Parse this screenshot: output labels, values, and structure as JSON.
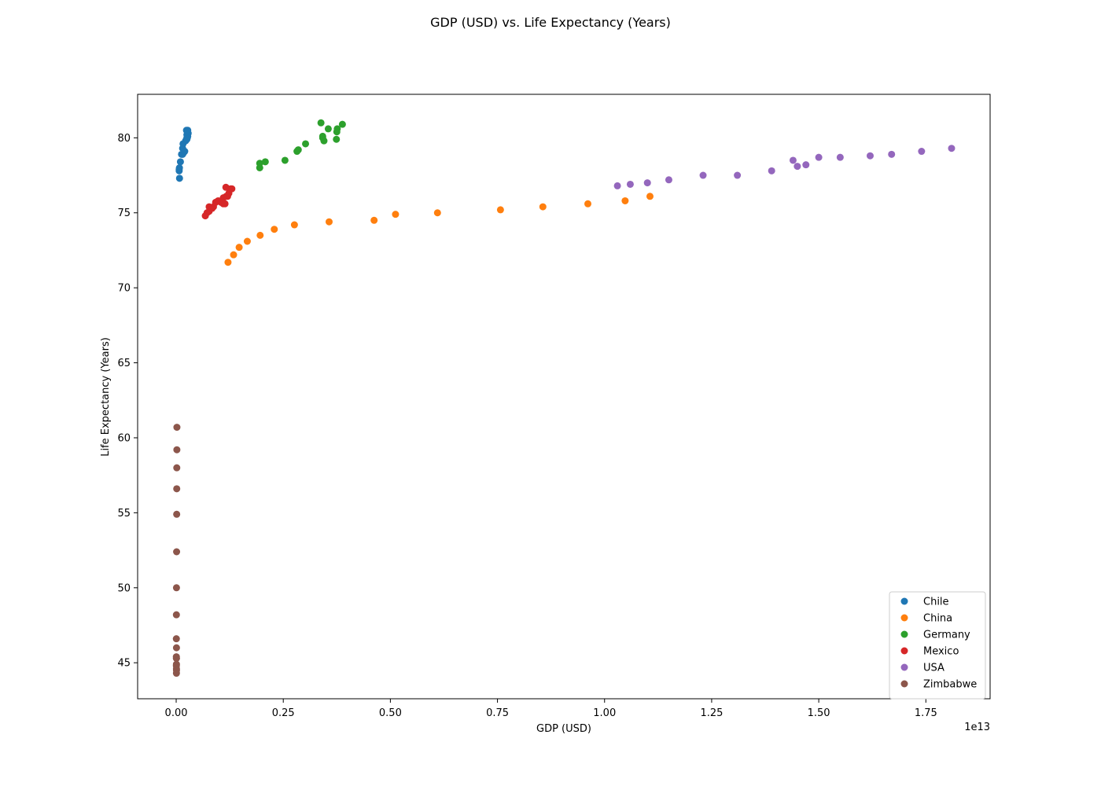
{
  "chart_data": {
    "type": "scatter",
    "title": "GDP (USD) vs. Life Expectancy (Years)",
    "xlabel": "GDP (USD)",
    "ylabel": "Life Expectancy (Years)",
    "x_offset_label": "1e13",
    "xlim": [
      -900000000000.0,
      19000000000000.0
    ],
    "ylim": [
      42.6,
      82.9
    ],
    "x_ticks": [
      0,
      2500000000000.0,
      5000000000000.0,
      7500000000000.0,
      10000000000000.0,
      12500000000000.0,
      15000000000000.0,
      17500000000000.0
    ],
    "x_tick_labels": [
      "0.00",
      "0.25",
      "0.50",
      "0.75",
      "1.00",
      "1.25",
      "1.50",
      "1.75"
    ],
    "y_ticks": [
      45,
      50,
      55,
      60,
      65,
      70,
      75,
      80
    ],
    "y_tick_labels": [
      "45",
      "50",
      "55",
      "60",
      "65",
      "70",
      "75",
      "80"
    ],
    "grid": false,
    "legend_position": "lower-right",
    "series": [
      {
        "name": "Chile",
        "color": "#1f77b4",
        "x": [
          78000000000.0,
          70000000000.0,
          70000000000.0,
          76000000000.0,
          99000000000.0,
          125000000000.0,
          150000000000.0,
          172000000000.0,
          160000000000.0,
          150000000000.0,
          200000000000.0,
          220000000000.0,
          240000000000.0,
          260000000000.0,
          270000000000.0,
          280000000000.0,
          270000000000.0,
          260000000000.0,
          250000000000.0,
          250000000000.0,
          240000000000.0,
          250000000000.0
        ],
        "y": [
          77.3,
          77.8,
          77.9,
          78.0,
          78.4,
          78.9,
          78.9,
          79.0,
          79.6,
          79.3,
          79.1,
          79.8,
          79.9,
          80.0,
          80.1,
          80.3,
          80.5,
          80.4,
          80.2,
          80.0,
          80.5,
          79.9
        ]
      },
      {
        "name": "China",
        "color": "#ff7f0e",
        "x": [
          1210000000000.0,
          1340000000000.0,
          1470000000000.0,
          1660000000000.0,
          1960000000000.0,
          2290000000000.0,
          2760000000000.0,
          3570000000000.0,
          4620000000000.0,
          5120000000000.0,
          6100000000000.0,
          7570000000000.0,
          8560000000000.0,
          9610000000000.0,
          10480000000000.0,
          11060000000000.0
        ],
        "y": [
          71.7,
          72.2,
          72.7,
          73.1,
          73.5,
          73.9,
          74.2,
          74.4,
          74.5,
          74.9,
          75.0,
          75.2,
          75.4,
          75.6,
          75.8,
          76.1
        ]
      },
      {
        "name": "Germany",
        "color": "#2ca02c",
        "x": [
          1950000000000.0,
          1950000000000.0,
          2080000000000.0,
          2540000000000.0,
          2820000000000.0,
          2850000000000.0,
          3020000000000.0,
          3380000000000.0,
          3420000000000.0,
          3420000000000.0,
          3450000000000.0,
          3550000000000.0,
          3740000000000.0,
          3750000000000.0,
          3760000000000.0,
          3880000000000.0
        ],
        "y": [
          78.0,
          78.3,
          78.4,
          78.5,
          79.1,
          79.2,
          79.6,
          81.0,
          80.1,
          80.0,
          79.8,
          80.6,
          79.9,
          80.4,
          80.6,
          80.9
        ]
      },
      {
        "name": "Mexico",
        "color": "#d62728",
        "x": [
          680000000000.0,
          720000000000.0,
          770000000000.0,
          770000000000.0,
          840000000000.0,
          870000000000.0,
          920000000000.0,
          980000000000.0,
          1050000000000.0,
          1100000000000.0,
          1100000000000.0,
          1140000000000.0,
          1160000000000.0,
          1170000000000.0,
          1200000000000.0,
          1230000000000.0,
          1270000000000.0,
          1300000000000.0
        ],
        "y": [
          74.8,
          75.0,
          75.1,
          75.4,
          75.3,
          75.4,
          75.7,
          75.8,
          75.7,
          76.0,
          75.6,
          75.6,
          76.7,
          76.1,
          76.1,
          76.3,
          76.6,
          76.6
        ]
      },
      {
        "name": "USA",
        "color": "#9467bd",
        "x": [
          10300000000000.0,
          10600000000000.0,
          11000000000000.0,
          11500000000000.0,
          12300000000000.0,
          13100000000000.0,
          13900000000000.0,
          14400000000000.0,
          14500000000000.0,
          14700000000000.0,
          15000000000000.0,
          15500000000000.0,
          16200000000000.0,
          16700000000000.0,
          17400000000000.0,
          18100000000000.0
        ],
        "y": [
          76.8,
          76.9,
          77.0,
          77.2,
          77.5,
          77.5,
          77.8,
          78.5,
          78.1,
          78.2,
          78.7,
          78.7,
          78.8,
          78.9,
          79.1,
          79.3
        ]
      },
      {
        "name": "Zimbabwe",
        "color": "#8c564b",
        "x": [
          7000000000.0,
          7000000000.0,
          6000000000.0,
          6000000000.0,
          7000000000.0,
          6000000000.0,
          4000000000.0,
          4000000000.0,
          4000000000.0,
          4000000000.0,
          5000000000.0,
          7000000000.0,
          10000000000.0,
          12000000000.0,
          13000000000.0,
          14000000000.0,
          16000000000.0,
          17000000000.0
        ],
        "y": [
          46.0,
          45.3,
          44.9,
          44.3,
          44.5,
          44.6,
          44.8,
          45.3,
          45.4,
          46.6,
          48.2,
          50.0,
          52.4,
          54.9,
          56.6,
          58.0,
          59.2,
          60.7
        ]
      }
    ]
  }
}
